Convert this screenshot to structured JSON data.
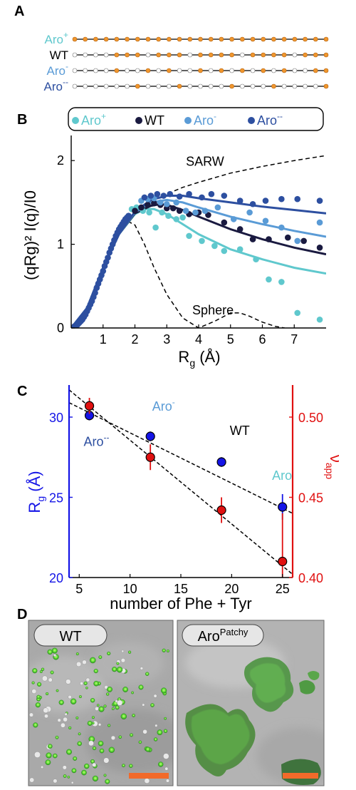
{
  "panels": {
    "a": "A",
    "b": "B",
    "c": "C",
    "d": "D"
  },
  "colors": {
    "aro_plus": "#5fc8cd",
    "wt": "#1a1a40",
    "aro_minus": "#5a9bd6",
    "aro_minusminus": "#2d4fa0",
    "orange": "#f0962d",
    "blue_axis": "#1414e6",
    "red": "#e01010"
  },
  "panel_a": {
    "sequences": [
      {
        "name_base": "Aro",
        "name_sup": "+",
        "color": "#5fc8cd",
        "sites": 25,
        "pattern": [
          1,
          1,
          1,
          1,
          1,
          1,
          1,
          1,
          1,
          1,
          1,
          1,
          1,
          1,
          1,
          1,
          1,
          1,
          1,
          1,
          1,
          1,
          1,
          1,
          1
        ]
      },
      {
        "name_base": "WT",
        "name_sup": "",
        "color": "#000000",
        "sites": 25,
        "pattern": [
          0,
          0,
          0,
          0,
          1,
          1,
          1,
          0,
          1,
          1,
          1,
          0,
          1,
          1,
          1,
          1,
          0,
          1,
          1,
          1,
          1,
          0,
          1,
          1,
          1
        ]
      },
      {
        "name_base": "Aro",
        "name_sup": "-",
        "color": "#5a9bd6",
        "sites": 25,
        "pattern": [
          0,
          0,
          0,
          0,
          1,
          0,
          0,
          1,
          0,
          1,
          0,
          0,
          1,
          0,
          1,
          0,
          1,
          0,
          1,
          0,
          1,
          0,
          0,
          1,
          1
        ]
      },
      {
        "name_base": "Aro",
        "name_sup": "--",
        "color": "#2d4fa0",
        "sites": 25,
        "pattern": [
          0,
          0,
          0,
          0,
          0,
          0,
          1,
          0,
          0,
          0,
          1,
          0,
          0,
          0,
          0,
          1,
          0,
          0,
          0,
          1,
          0,
          0,
          0,
          0,
          1
        ]
      }
    ]
  },
  "chart_data": [
    {
      "type": "scatter",
      "panel": "B",
      "xlabel_base": "R",
      "xlabel_sub": "g",
      "xlabel_rest": " (Å)",
      "ylabel": "(qRg)² I(q)/I0",
      "xlim": [
        0,
        8
      ],
      "ylim": [
        0,
        2.3
      ],
      "xticks": [
        1,
        2,
        3,
        4,
        5,
        6,
        7
      ],
      "yticks": [
        0,
        1,
        2
      ],
      "legend": [
        {
          "label_base": "Aro",
          "label_sup": "+",
          "color": "#5fc8cd"
        },
        {
          "label_base": "WT",
          "label_sup": "",
          "color": "#1a1a40"
        },
        {
          "label_base": "Aro",
          "label_sup": "-",
          "color": "#5a9bd6"
        },
        {
          "label_base": "Aro",
          "label_sup": "--",
          "color": "#2d4fa0"
        }
      ],
      "reference_curves": [
        {
          "label": "SARW",
          "x": [
            0,
            0.5,
            1.0,
            1.5,
            2.0,
            2.5,
            3.0,
            3.5,
            4.0,
            5.0,
            6.0,
            7.0,
            8.0
          ],
          "y": [
            0,
            0.24,
            0.72,
            1.12,
            1.38,
            1.52,
            1.6,
            1.68,
            1.74,
            1.85,
            1.93,
            2.0,
            2.06
          ]
        },
        {
          "label": "Sphere",
          "x": [
            0,
            0.5,
            1.0,
            1.5,
            1.8,
            2.0,
            2.3,
            2.6,
            3.0,
            3.5,
            4.0,
            4.5,
            5.0,
            5.3,
            5.6,
            6.0,
            6.4,
            6.7
          ],
          "y": [
            0,
            0.24,
            0.72,
            1.14,
            1.27,
            1.23,
            1.0,
            0.72,
            0.4,
            0.12,
            0.0,
            0.08,
            0.18,
            0.18,
            0.14,
            0.07,
            0.02,
            0.0
          ]
        }
      ],
      "fits": [
        {
          "name": "Aro+",
          "color": "#5fc8cd",
          "x": [
            0,
            0.5,
            1.0,
            1.5,
            2.0,
            2.3,
            2.6,
            3.0,
            3.5,
            4.0,
            5.0,
            6.0,
            7.0,
            8.0
          ],
          "y": [
            0,
            0.24,
            0.72,
            1.12,
            1.36,
            1.42,
            1.42,
            1.36,
            1.24,
            1.12,
            0.94,
            0.82,
            0.72,
            0.65
          ]
        },
        {
          "name": "WT",
          "color": "#1a1a40",
          "x": [
            0,
            0.5,
            1.0,
            1.5,
            2.0,
            2.5,
            2.8,
            3.0,
            3.5,
            4.0,
            5.0,
            6.0,
            7.0,
            8.0
          ],
          "y": [
            0,
            0.24,
            0.72,
            1.12,
            1.37,
            1.46,
            1.48,
            1.47,
            1.41,
            1.33,
            1.18,
            1.06,
            0.96,
            0.88
          ]
        },
        {
          "name": "Aro-",
          "color": "#5a9bd6",
          "x": [
            0,
            0.5,
            1.0,
            1.5,
            2.0,
            2.5,
            3.0,
            3.5,
            4.0,
            5.0,
            6.0,
            7.0,
            8.0
          ],
          "y": [
            0,
            0.24,
            0.72,
            1.12,
            1.38,
            1.5,
            1.53,
            1.5,
            1.44,
            1.33,
            1.24,
            1.16,
            1.09
          ]
        },
        {
          "name": "Aro--",
          "color": "#2d4fa0",
          "x": [
            0,
            0.5,
            1.0,
            1.5,
            2.0,
            2.5,
            3.0,
            3.5,
            4.0,
            5.0,
            6.0,
            7.0,
            8.0
          ],
          "y": [
            0,
            0.24,
            0.72,
            1.12,
            1.39,
            1.53,
            1.58,
            1.58,
            1.55,
            1.5,
            1.45,
            1.41,
            1.37
          ]
        }
      ],
      "series": [
        {
          "name": "Aro+",
          "color": "#5fc8cd",
          "x": [
            1.9,
            2.05,
            2.25,
            2.45,
            2.65,
            2.85,
            3.05,
            3.3,
            3.5,
            3.7,
            4.1,
            4.5,
            4.8,
            5.3,
            5.8,
            6.2,
            6.6,
            7.1,
            7.8
          ],
          "y": [
            1.42,
            1.44,
            1.4,
            1.38,
            1.2,
            1.38,
            1.34,
            1.3,
            1.32,
            1.1,
            1.04,
            0.98,
            0.92,
            0.94,
            0.82,
            0.58,
            0.55,
            0.18,
            0.1
          ]
        },
        {
          "name": "WT",
          "color": "#1a1a40",
          "x": [
            2.0,
            2.2,
            2.4,
            2.6,
            2.8,
            3.0,
            3.2,
            3.4,
            3.7,
            4.0,
            4.3,
            4.8,
            5.3,
            5.7,
            6.2,
            6.8,
            7.3,
            7.8
          ],
          "y": [
            1.4,
            1.44,
            1.47,
            1.49,
            1.47,
            1.43,
            1.43,
            1.4,
            1.36,
            1.38,
            1.35,
            1.26,
            1.18,
            1.06,
            1.06,
            1.08,
            1.04,
            0.96
          ]
        },
        {
          "name": "Aro-",
          "color": "#5a9bd6",
          "x": [
            2.2,
            2.4,
            2.6,
            2.8,
            3.0,
            3.3,
            3.6,
            3.9,
            4.2,
            4.6,
            5.1,
            5.6,
            6.1,
            6.6,
            7.1,
            7.8
          ],
          "y": [
            1.52,
            1.54,
            1.55,
            1.5,
            1.48,
            1.5,
            1.4,
            1.38,
            1.4,
            1.44,
            1.3,
            1.38,
            1.28,
            1.2,
            1.04,
            1.26
          ]
        },
        {
          "name": "Aro--",
          "color": "#2d4fa0",
          "x": [
            2.3,
            2.5,
            2.7,
            2.9,
            3.1,
            3.4,
            3.7,
            4.1,
            4.4,
            4.8,
            5.3,
            5.7,
            6.1,
            6.6,
            7.1,
            7.8
          ],
          "y": [
            1.56,
            1.58,
            1.6,
            1.58,
            1.6,
            1.57,
            1.6,
            1.56,
            1.6,
            1.58,
            1.52,
            1.48,
            1.52,
            1.54,
            1.54,
            1.52
          ]
        },
        {
          "name": "all",
          "color": "#2d4fa0",
          "x": [
            0.1,
            0.15,
            0.2,
            0.25,
            0.3,
            0.35,
            0.4,
            0.45,
            0.5,
            0.55,
            0.6,
            0.65,
            0.7,
            0.75,
            0.8,
            0.85,
            0.9,
            0.95,
            1.0,
            1.05,
            1.1,
            1.15,
            1.2,
            1.25,
            1.3,
            1.35,
            1.4,
            1.45,
            1.5,
            1.55,
            1.6,
            1.65,
            1.7,
            1.75,
            1.8
          ],
          "y": [
            0.02,
            0.03,
            0.04,
            0.06,
            0.08,
            0.1,
            0.13,
            0.16,
            0.2,
            0.24,
            0.28,
            0.32,
            0.37,
            0.42,
            0.48,
            0.53,
            0.58,
            0.63,
            0.68,
            0.74,
            0.79,
            0.84,
            0.9,
            0.95,
            1.0,
            1.05,
            1.1,
            1.14,
            1.18,
            1.21,
            1.24,
            1.27,
            1.3,
            1.32,
            1.34
          ]
        }
      ],
      "annotations": [
        {
          "text": "SARW",
          "x": 3.6,
          "y": 1.94
        },
        {
          "text": "Sphere",
          "x": 3.8,
          "y": 0.16
        }
      ]
    },
    {
      "type": "scatter",
      "panel": "C",
      "xlabel": "number of Phe + Tyr",
      "ylabel_left_base": "R",
      "ylabel_left_sub": "g",
      "ylabel_left_rest": " (Å)",
      "ylabel_right_base": "ν",
      "ylabel_right_sub": "app",
      "xlim": [
        4,
        26
      ],
      "ylim_left": [
        20,
        32
      ],
      "ylim_right": [
        0.4,
        0.52
      ],
      "xticks": [
        5,
        10,
        15,
        20,
        25
      ],
      "yticks_left": [
        20,
        25,
        30
      ],
      "yticks_right": [
        "0.40",
        "0.45",
        "0.50"
      ],
      "series": [
        {
          "name": "Rg",
          "axis": "left",
          "color": "#1414e6",
          "x": [
            6,
            12,
            19,
            25
          ],
          "y": [
            30.1,
            28.8,
            27.2,
            24.4
          ],
          "err": [
            0.3,
            0.3,
            0.3,
            0.8
          ]
        },
        {
          "name": "nu_app",
          "axis": "right",
          "color": "#e01010",
          "x": [
            6,
            12,
            19,
            25
          ],
          "y": [
            0.507,
            0.475,
            0.442,
            0.41
          ],
          "err": [
            0.005,
            0.008,
            0.008,
            0.03
          ]
        }
      ],
      "trendlines": [
        {
          "axis": "left",
          "x": [
            4,
            26
          ],
          "y": [
            30.9,
            24.0
          ]
        },
        {
          "axis": "right",
          "x": [
            4,
            26
          ],
          "y": [
            0.517,
            0.402
          ]
        }
      ],
      "point_labels": [
        {
          "base": "Aro",
          "sup": "--",
          "color": "#2d4fa0",
          "x": 6.7,
          "y": 28.2
        },
        {
          "base": "Aro",
          "sup": "-",
          "color": "#5a9bd6",
          "x": 13.3,
          "y": 30.4
        },
        {
          "base": "WT",
          "sup": "",
          "color": "#000000",
          "x": 20.8,
          "y": 28.9
        },
        {
          "base": "Aro",
          "sup": "+",
          "color": "#5fc8cd",
          "x": 25.2,
          "y": 26.1
        }
      ]
    }
  ],
  "panel_d": {
    "images": [
      {
        "label_base": "WT",
        "label_sup": ""
      },
      {
        "label_base": "Aro",
        "label_sup": "Patchy"
      }
    ]
  }
}
